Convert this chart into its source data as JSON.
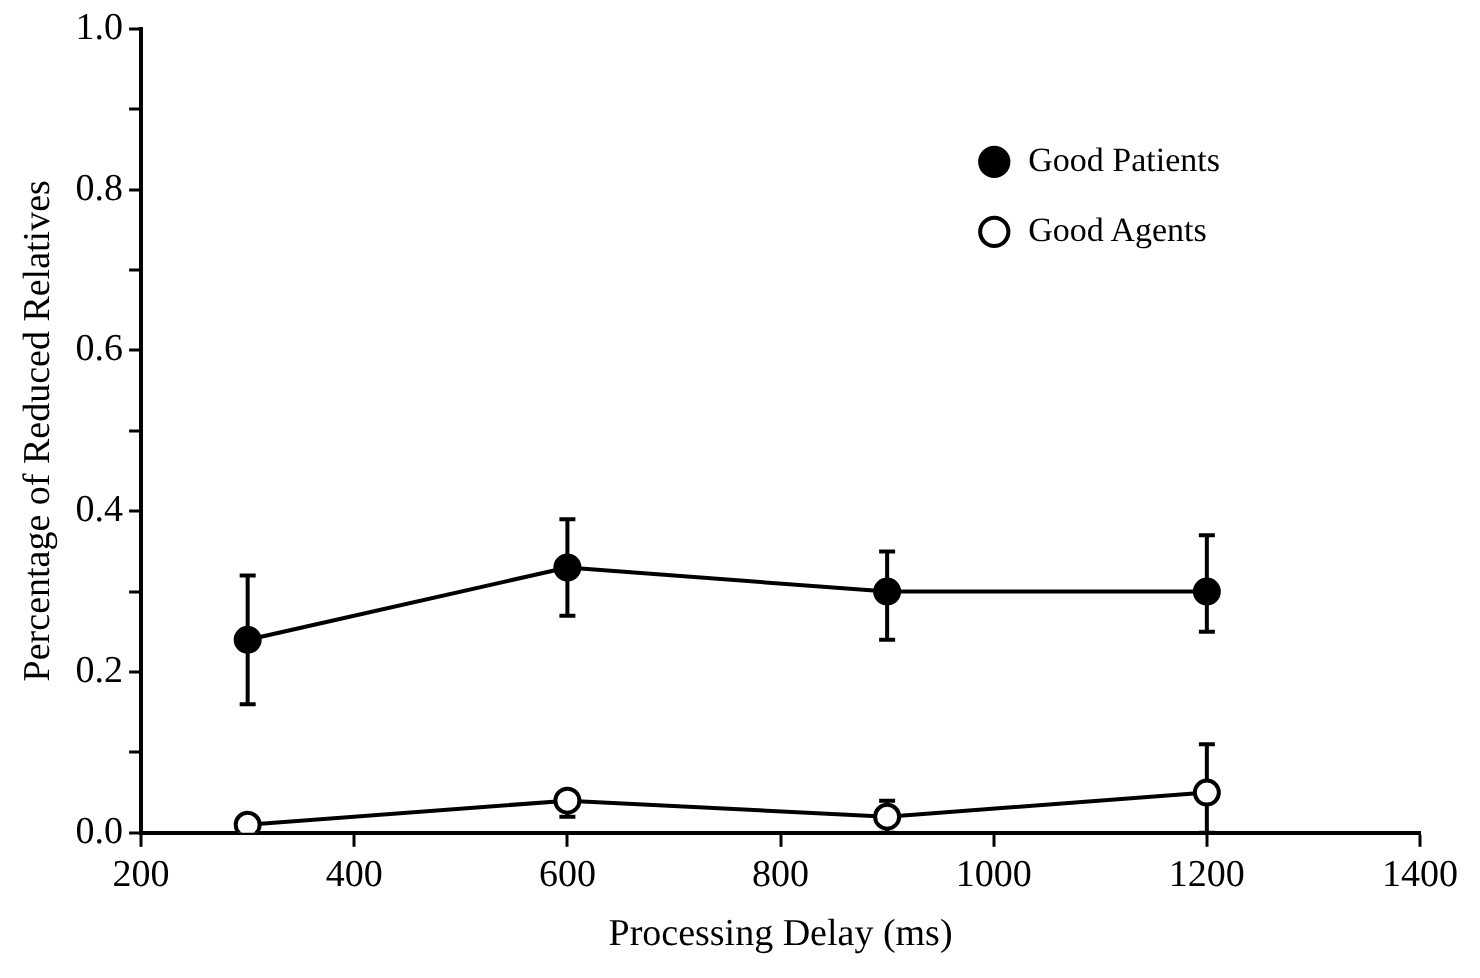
{
  "chart_data": {
    "type": "line",
    "xlabel": "Processing Delay (ms)",
    "ylabel": "Percentage of Reduced Relatives",
    "x": [
      300,
      600,
      900,
      1200
    ],
    "series": [
      {
        "name": "Good Patients",
        "color": "#000000",
        "marker": "circle",
        "values": [
          0.24,
          0.33,
          0.3,
          0.3
        ],
        "errors": [
          [
            0.16,
            0.32
          ],
          [
            0.27,
            0.39
          ],
          [
            0.24,
            0.35
          ],
          [
            0.25,
            0.37
          ]
        ]
      },
      {
        "name": "Good Agents",
        "color": "#000000",
        "marker": "circle",
        "values": [
          0.01,
          0.04,
          0.02,
          0.05
        ],
        "errors": [
          null,
          [
            0.02,
            0.05
          ],
          [
            0.0,
            0.04
          ],
          [
            0.0,
            0.11
          ]
        ]
      }
    ],
    "xlim": [
      200,
      1400
    ],
    "xticks": [
      200,
      400,
      600,
      800,
      1000,
      1200,
      1400
    ],
    "ylim": [
      0,
      1
    ],
    "yticks": [
      {
        "value": 0,
        "label": "0.0"
      },
      {
        "value": 0.1,
        "label": null
      },
      {
        "value": 0.2,
        "label": "0.2"
      },
      {
        "value": 0.3,
        "label": null
      },
      {
        "value": 0.4,
        "label": "0.4"
      },
      {
        "value": 0.5,
        "label": null
      },
      {
        "value": 0.6,
        "label": "0.6"
      },
      {
        "value": 0.7,
        "label": null
      },
      {
        "value": 0.8,
        "label": "0.8"
      },
      {
        "value": 0.9,
        "label": null
      },
      {
        "value": 1,
        "label": "1.0"
      }
    ],
    "grid": false,
    "legend": "top right",
    "line_style": "solid"
  }
}
